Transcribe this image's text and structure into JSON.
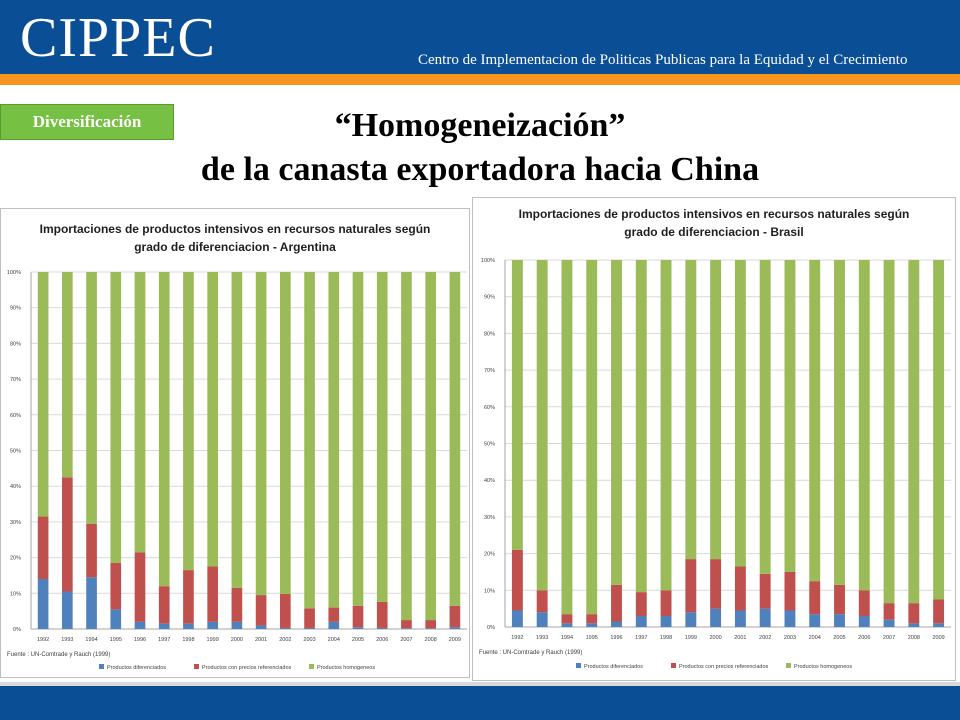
{
  "header": {
    "logo": "CIPPEC",
    "tagline": "Centro de Implementacion de Politicas Publicas para la Equidad y el Crecimiento"
  },
  "badge": "Diversificación",
  "slide_title": {
    "line1": "“Homogeneización”",
    "line2": "de la canasta exportadora hacia China"
  },
  "colors": {
    "header_blue": "#0a4f96",
    "stripe_orange": "#f7941d",
    "badge_green": "#76c043",
    "diferenciados": "#4f81bd",
    "referenciados": "#c0504d",
    "homogeneos": "#9bbb59"
  },
  "chart_data": [
    {
      "type": "bar",
      "stacked": true,
      "title": "Importaciones de productos intensivos en recursos naturales según grado de diferenciacion - Argentina",
      "title_lines": [
        "Importaciones de productos intensivos en recursos naturales según",
        "grado de diferenciacion - Argentina"
      ],
      "categories": [
        "1992",
        "1993",
        "1994",
        "1995",
        "1996",
        "1997",
        "1998",
        "1999",
        "2000",
        "2001",
        "2002",
        "2003",
        "2004",
        "2005",
        "2006",
        "2007",
        "2008",
        "2009"
      ],
      "series": [
        {
          "name": "Productos diferenciados",
          "color": "#4f81bd",
          "values": [
            14,
            10.5,
            14.5,
            5.5,
            2,
            1.5,
            1.5,
            2,
            2,
            1,
            0.3,
            0.3,
            2,
            0.5,
            0.3,
            0.2,
            0.2,
            0.5
          ]
        },
        {
          "name": "Productos con precios referenciados",
          "color": "#c0504d",
          "values": [
            17.5,
            32,
            15,
            13,
            19.5,
            10.5,
            15,
            15.5,
            9.5,
            8.5,
            9.5,
            5.5,
            4,
            6,
            7.3,
            2.3,
            2.3,
            6
          ]
        },
        {
          "name": "Productos homogeneos",
          "color": "#9bbb59",
          "values": [
            68.5,
            57.5,
            70.5,
            81.5,
            78.5,
            88,
            83.5,
            82.5,
            88.5,
            90.5,
            90.2,
            94.2,
            94,
            93.5,
            92.4,
            97.5,
            97.5,
            93.5
          ]
        }
      ],
      "yticks": [
        "0%",
        "10%",
        "20%",
        "30%",
        "40%",
        "50%",
        "60%",
        "70%",
        "80%",
        "90%",
        "100%"
      ],
      "ylim": [
        0,
        100
      ],
      "source": "Fuente : UN-Comtrade y Rauch (1999)",
      "legend_position": "bottom"
    },
    {
      "type": "bar",
      "stacked": true,
      "title": "Importaciones de productos intensivos en recursos naturales según grado de diferenciacion - Brasil",
      "title_lines": [
        "Importaciones de productos intensivos en recursos naturales según",
        "grado de diferenciacion - Brasil"
      ],
      "categories": [
        "1992",
        "1993",
        "1994",
        "1995",
        "1996",
        "1997",
        "1998",
        "1999",
        "2000",
        "2001",
        "2002",
        "2003",
        "2004",
        "2005",
        "2006",
        "2007",
        "2008",
        "2009"
      ],
      "series": [
        {
          "name": "Productos diferenciados",
          "color": "#4f81bd",
          "values": [
            4.5,
            4,
            1,
            1,
            1.5,
            3,
            3,
            4,
            5,
            4.5,
            5,
            4.5,
            3.5,
            3.5,
            3,
            2,
            1,
            1
          ]
        },
        {
          "name": "Productos con precios referenciados",
          "color": "#c0504d",
          "values": [
            16.5,
            6,
            2.5,
            2.5,
            10,
            6.5,
            7,
            14.5,
            13.5,
            12,
            9.5,
            10.5,
            9,
            8,
            7,
            4.5,
            5.5,
            6.5
          ]
        },
        {
          "name": "Productos homogeneos",
          "color": "#9bbb59",
          "values": [
            79,
            90,
            96.5,
            96.5,
            88.5,
            90.5,
            90,
            81.5,
            81.5,
            83.5,
            85.5,
            85,
            87.5,
            88.5,
            90,
            93.5,
            93.5,
            92.5
          ]
        }
      ],
      "yticks": [
        "0%",
        "10%",
        "20%",
        "30%",
        "40%",
        "50%",
        "60%",
        "70%",
        "80%",
        "90%",
        "100%"
      ],
      "ylim": [
        0,
        100
      ],
      "source": "Fuente : UN-Comtrade y Rauch (1999)",
      "legend_position": "bottom"
    }
  ]
}
